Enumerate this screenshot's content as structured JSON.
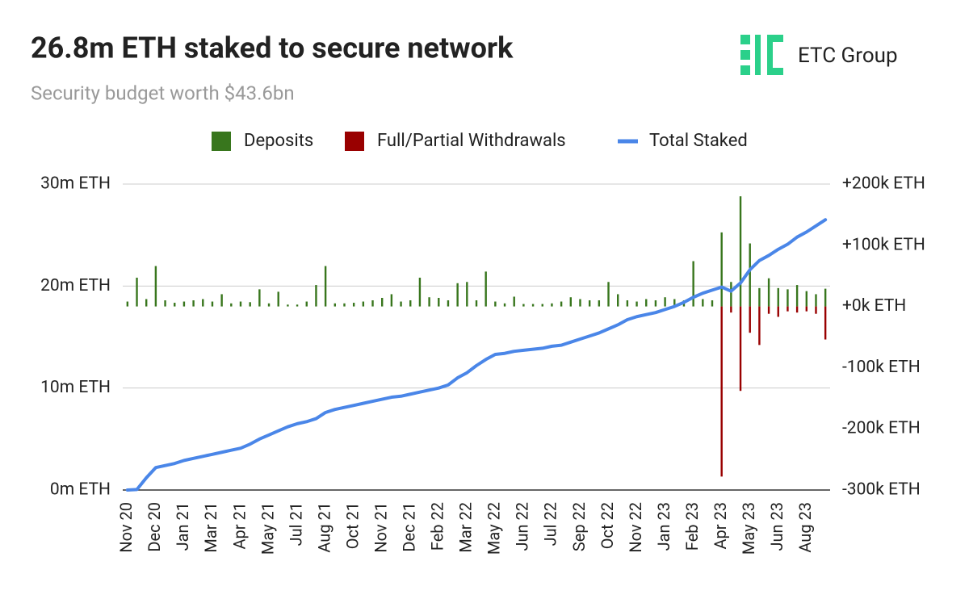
{
  "brand": "ETC Group",
  "chart_data": {
    "type": "combo",
    "title": "26.8m ETH staked to secure network",
    "subtitle": "Security budget worth $43.6bn",
    "categories": [
      "Nov 20",
      null,
      null,
      "Dec 20",
      null,
      null,
      "Jan 21",
      null,
      null,
      "Mar 21",
      null,
      null,
      "Apr 21",
      null,
      null,
      "May 21",
      null,
      null,
      "Jul 21",
      null,
      null,
      "Aug 21",
      null,
      null,
      "Oct 21",
      null,
      null,
      "Nov 21",
      null,
      null,
      "Dec 21",
      null,
      null,
      "Feb 22",
      null,
      null,
      "Mar 22",
      null,
      null,
      "May 22",
      null,
      null,
      "Jun 22",
      null,
      null,
      "Jul 22",
      null,
      null,
      "Sep 22",
      null,
      null,
      "Oct 22",
      null,
      null,
      "Nov 22",
      null,
      null,
      "Jan 23",
      null,
      null,
      "Feb 23",
      null,
      null,
      "Apr 23",
      null,
      null,
      "May 23",
      null,
      null,
      "Jun 23",
      null,
      null,
      "Aug 23",
      null,
      null
    ],
    "series": [
      {
        "name": "Deposits",
        "type": "bar",
        "axis": "y2",
        "color": "#38761d",
        "values": [
          8,
          47,
          12,
          66,
          10,
          6,
          8,
          10,
          12,
          8,
          20,
          5,
          8,
          7,
          28,
          5,
          24,
          3,
          3,
          8,
          35,
          66,
          5,
          5,
          6,
          8,
          10,
          14,
          20,
          8,
          10,
          47,
          15,
          14,
          10,
          38,
          40,
          10,
          57,
          8,
          5,
          16,
          4,
          4,
          4,
          5,
          8,
          15,
          12,
          10,
          10,
          40,
          20,
          10,
          8,
          12,
          10,
          15,
          12,
          10,
          74,
          12,
          10,
          121,
          40,
          180,
          103,
          30,
          46,
          30,
          28,
          35,
          25,
          20,
          29
        ]
      },
      {
        "name": "Full/Partial Withdrawals",
        "type": "bar",
        "axis": "y2",
        "color": "#990000",
        "values": [
          0,
          0,
          0,
          0,
          0,
          0,
          0,
          0,
          0,
          0,
          0,
          0,
          0,
          0,
          0,
          0,
          0,
          0,
          0,
          0,
          0,
          0,
          0,
          0,
          0,
          0,
          0,
          0,
          0,
          0,
          0,
          0,
          0,
          0,
          0,
          0,
          0,
          0,
          0,
          0,
          0,
          0,
          0,
          0,
          0,
          0,
          0,
          0,
          0,
          0,
          0,
          0,
          0,
          0,
          0,
          0,
          0,
          0,
          0,
          0,
          0,
          0,
          0,
          -278,
          -10,
          -138,
          -43,
          -63,
          -12,
          -17,
          -8,
          -10,
          -8,
          -12,
          -54
        ]
      },
      {
        "name": "Total Staked",
        "type": "line",
        "axis": "y",
        "color": "#4a86e8",
        "values": [
          0,
          0.05,
          1.2,
          2.2,
          2.4,
          2.6,
          2.9,
          3.1,
          3.3,
          3.5,
          3.7,
          3.9,
          4.1,
          4.5,
          5.0,
          5.4,
          5.8,
          6.2,
          6.5,
          6.7,
          7.0,
          7.6,
          7.9,
          8.1,
          8.3,
          8.5,
          8.7,
          8.9,
          9.1,
          9.2,
          9.4,
          9.6,
          9.8,
          10.0,
          10.3,
          11.0,
          11.5,
          12.2,
          12.8,
          13.3,
          13.4,
          13.6,
          13.7,
          13.8,
          13.9,
          14.1,
          14.2,
          14.5,
          14.8,
          15.1,
          15.4,
          15.8,
          16.2,
          16.7,
          17.0,
          17.2,
          17.4,
          17.7,
          18.0,
          18.4,
          18.9,
          19.3,
          19.6,
          19.9,
          19.5,
          20.3,
          21.6,
          22.5,
          23.0,
          23.6,
          24.1,
          24.8,
          25.3,
          25.9,
          26.5
        ]
      }
    ],
    "ylim": [
      0,
      30
    ],
    "yticks": [
      {
        "value": 0,
        "label": "0m ETH"
      },
      {
        "value": 10,
        "label": "10m ETH"
      },
      {
        "value": 20,
        "label": "20m ETH"
      },
      {
        "value": 30,
        "label": "30m ETH"
      }
    ],
    "y2lim": [
      -300,
      200
    ],
    "y2ticks": [
      {
        "value": -300,
        "label": "-300k ETH"
      },
      {
        "value": -200,
        "label": "-200k ETH"
      },
      {
        "value": -100,
        "label": "-100k ETH"
      },
      {
        "value": 0,
        "label": "+0k ETH"
      },
      {
        "value": 100,
        "label": "+100k ETH"
      },
      {
        "value": 200,
        "label": "+200k ETH"
      }
    ],
    "grid": true
  }
}
